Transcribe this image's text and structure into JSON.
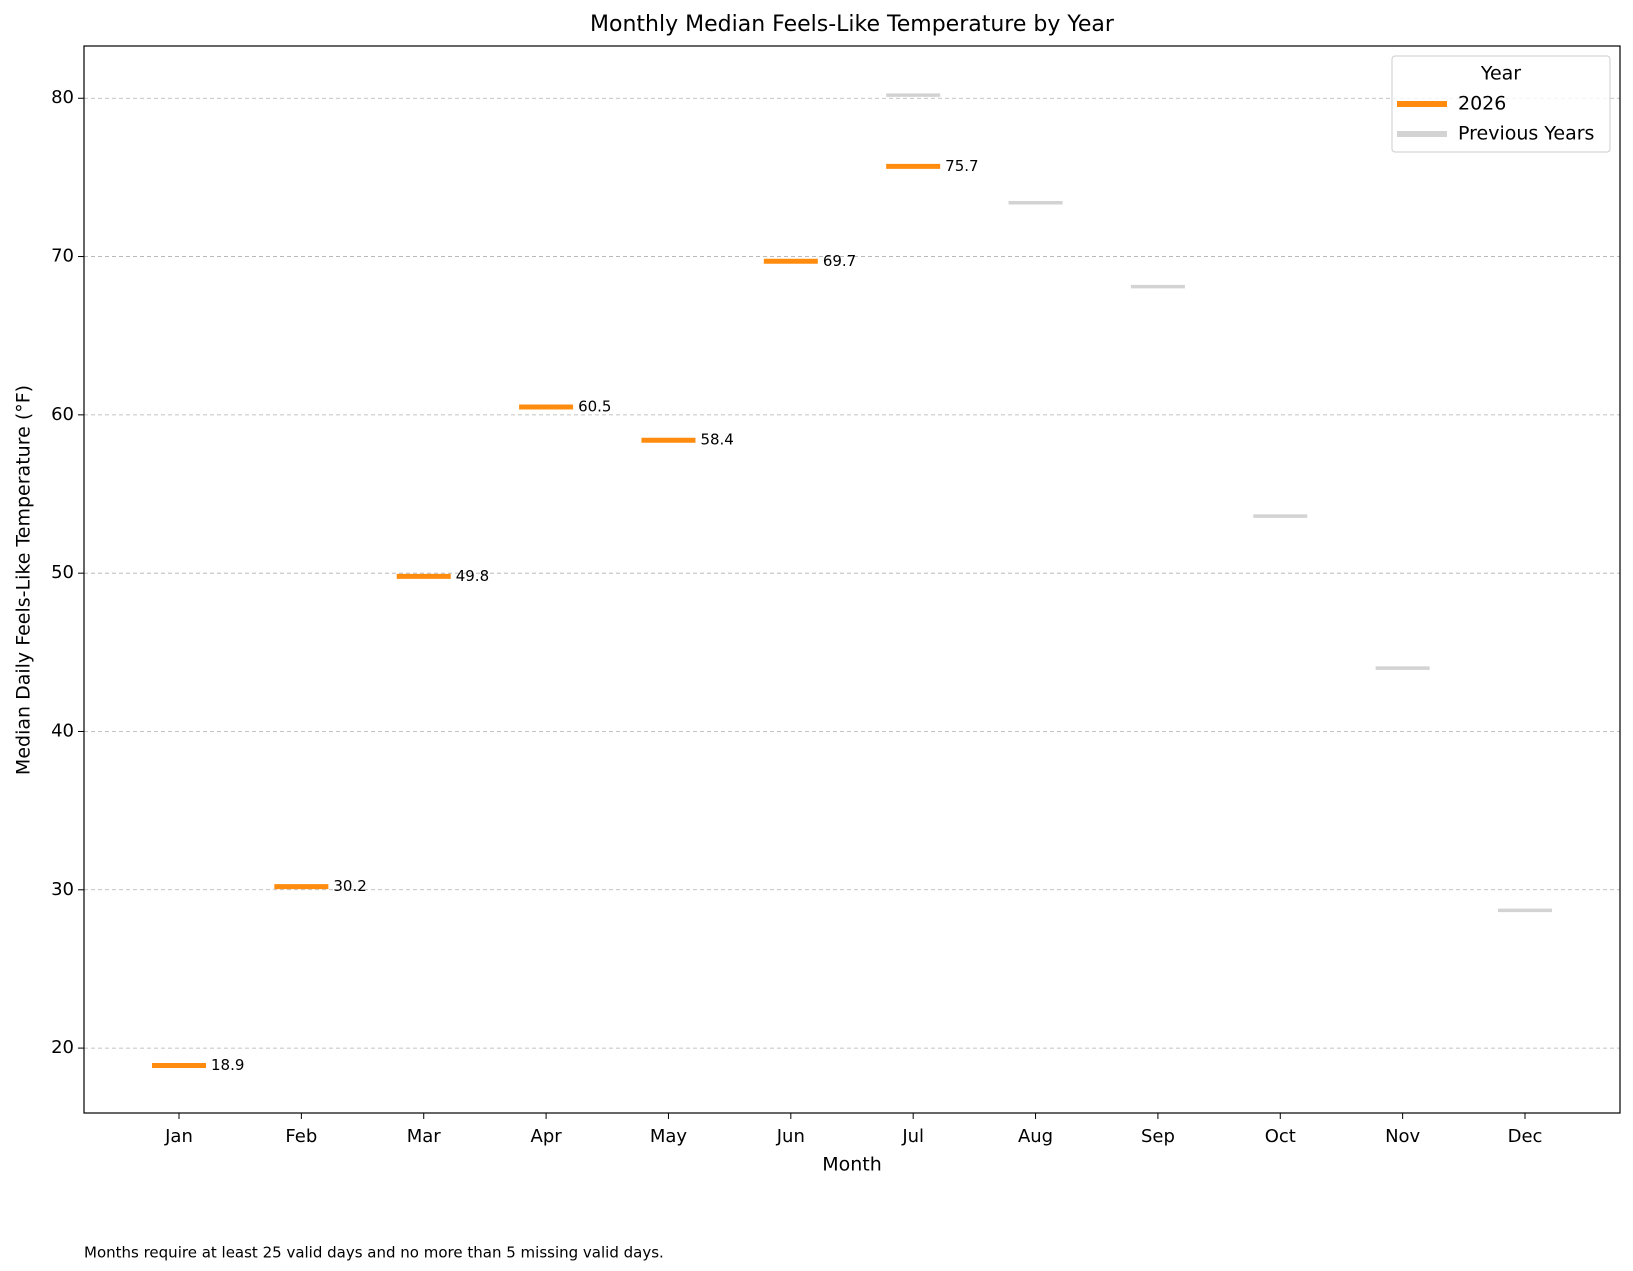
{
  "chart_data": {
    "type": "scatter",
    "title": "Monthly Median Feels-Like Temperature by Year",
    "xlabel": "Month",
    "ylabel": "Median Daily Feels-Like Temperature (°F)",
    "categories": [
      "Jan",
      "Feb",
      "Mar",
      "Apr",
      "May",
      "Jun",
      "Jul",
      "Aug",
      "Sep",
      "Oct",
      "Nov",
      "Dec"
    ],
    "series": [
      {
        "name": "Previous Years",
        "color": "#d3d3d3",
        "show_labels": false,
        "values": [
          null,
          null,
          null,
          null,
          null,
          null,
          80.2,
          73.4,
          68.1,
          53.6,
          44.0,
          28.7
        ]
      },
      {
        "name": "2026",
        "color": "#ff8c0f",
        "show_labels": true,
        "values": [
          18.9,
          30.2,
          49.8,
          60.5,
          58.4,
          69.7,
          75.7,
          null,
          null,
          null,
          null,
          null
        ]
      }
    ],
    "legend_order": [
      1,
      0
    ],
    "legend_title": "Year",
    "legend_loc": "upper right",
    "ylim": [
      15.9,
      83.3
    ],
    "yticks": [
      20,
      30,
      40,
      50,
      60,
      70,
      80
    ],
    "grid": true,
    "footnote": "Months require at least 25 valid days and no more than 5 missing valid days."
  }
}
